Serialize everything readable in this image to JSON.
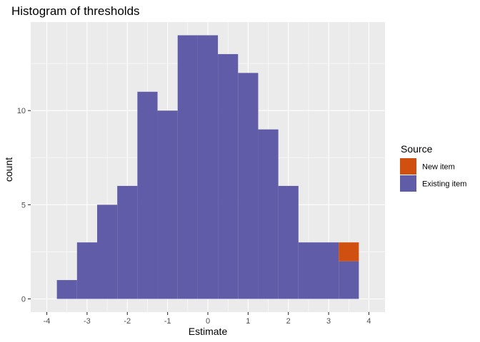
{
  "chart_data": {
    "type": "bar",
    "title": "Histogram of thresholds",
    "xlabel": "Estimate",
    "ylabel": "count",
    "xlim": [
      -4.4,
      4.4
    ],
    "ylim": [
      -0.7,
      14.7
    ],
    "x_ticks": [
      -4,
      -3,
      -2,
      -1,
      0,
      1,
      2,
      3,
      4
    ],
    "x_tick_labels": [
      "-4",
      "-3",
      "-2",
      "-1",
      "0",
      "1",
      "2",
      "3",
      "4"
    ],
    "y_ticks": [
      0,
      5,
      10
    ],
    "y_tick_labels": [
      "0",
      "5",
      "10"
    ],
    "bin_width": 0.5,
    "bin_starts": [
      -3.75,
      -3.25,
      -2.75,
      -2.25,
      -1.75,
      -1.25,
      -0.75,
      -0.25,
      0.25,
      0.75,
      1.25,
      1.75,
      2.25,
      2.75,
      3.25
    ],
    "series": [
      {
        "name": "Existing item",
        "color": "#615ca8",
        "values": [
          1,
          3,
          5,
          6,
          11,
          10,
          14,
          14,
          13,
          12,
          9,
          6,
          3,
          3,
          2
        ]
      },
      {
        "name": "New item",
        "color": "#d0510f",
        "values": [
          0,
          0,
          0,
          0,
          0,
          0,
          0,
          0,
          0,
          0,
          0,
          0,
          0,
          0,
          1
        ]
      }
    ],
    "stack_order": [
      "Existing item",
      "New item"
    ],
    "legend": {
      "title": "Source",
      "position": "right",
      "entries": [
        "New item",
        "Existing item"
      ]
    },
    "grid": true,
    "panel_background": "#ebebeb",
    "grid_color": "#ffffff"
  }
}
